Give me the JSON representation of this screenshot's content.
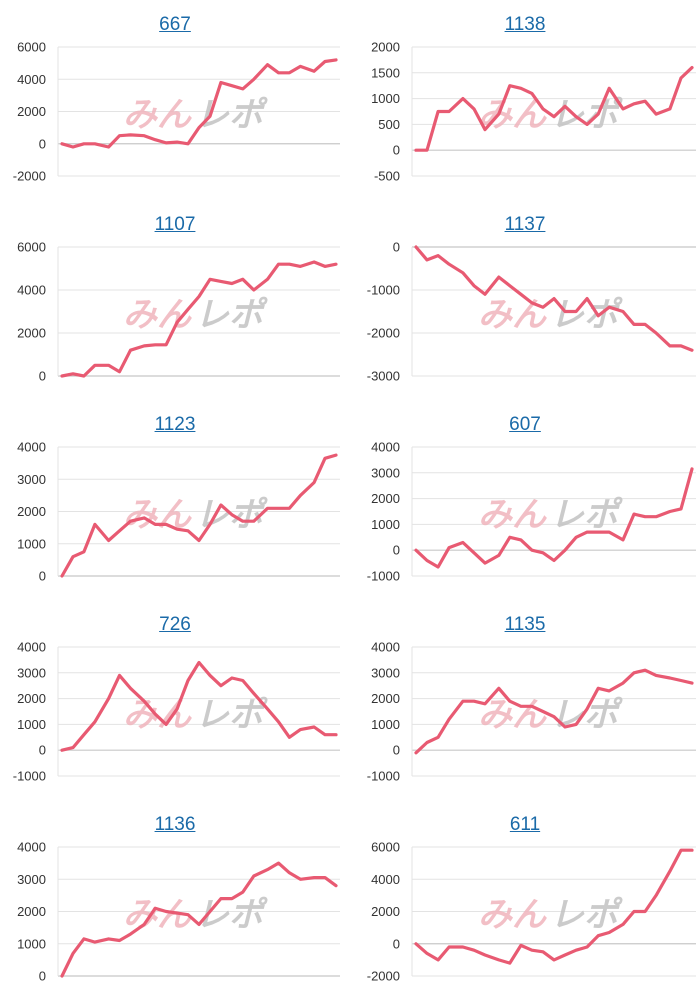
{
  "colors": {
    "line": "#e85a72",
    "title": "#1a6aa8",
    "watermark_a": "#f0b4bc",
    "watermark_b": "#c2c2c2"
  },
  "watermark": {
    "part_a": "みん",
    "part_b": "レポ"
  },
  "chart_data": [
    {
      "type": "line",
      "title": "667",
      "yticks": [
        6000,
        4000,
        2000,
        0,
        -2000
      ],
      "ylim": [
        -2000,
        6000
      ],
      "x": [
        0,
        4,
        8,
        12,
        17,
        21,
        25,
        30,
        34,
        38,
        42,
        46,
        50,
        54,
        58,
        62,
        66,
        70,
        75,
        79,
        83,
        87,
        92,
        96,
        100
      ],
      "values": [
        0,
        -200,
        0,
        0,
        -200,
        500,
        550,
        500,
        250,
        50,
        100,
        0,
        1000,
        1700,
        3800,
        3600,
        3400,
        4000,
        4900,
        4400,
        4400,
        4800,
        4500,
        5100,
        5200
      ]
    },
    {
      "type": "line",
      "title": "1138",
      "yticks": [
        2000,
        1500,
        1000,
        500,
        0,
        -500
      ],
      "ylim": [
        -500,
        2000
      ],
      "x": [
        0,
        4,
        8,
        12,
        17,
        21,
        25,
        30,
        34,
        38,
        42,
        46,
        50,
        54,
        58,
        62,
        66,
        70,
        75,
        79,
        83,
        87,
        92,
        96,
        100
      ],
      "values": [
        0,
        0,
        750,
        750,
        1000,
        800,
        400,
        700,
        1250,
        1200,
        1100,
        800,
        650,
        850,
        650,
        500,
        700,
        1200,
        800,
        900,
        950,
        700,
        800,
        1400,
        1600
      ]
    },
    {
      "type": "line",
      "title": "1107",
      "yticks": [
        6000,
        4000,
        2000,
        0
      ],
      "ylim": [
        0,
        6000
      ],
      "x": [
        0,
        4,
        8,
        12,
        17,
        21,
        25,
        30,
        34,
        38,
        42,
        46,
        50,
        54,
        58,
        62,
        66,
        70,
        75,
        79,
        83,
        87,
        92,
        96,
        100
      ],
      "values": [
        0,
        100,
        0,
        500,
        500,
        200,
        1200,
        1400,
        1450,
        1450,
        2500,
        3100,
        3700,
        4500,
        4400,
        4300,
        4500,
        4000,
        4500,
        5200,
        5200,
        5100,
        5300,
        5100,
        5200
      ]
    },
    {
      "type": "line",
      "title": "1137",
      "yticks": [
        0,
        -1000,
        -2000,
        -3000
      ],
      "ylim": [
        -3000,
        0
      ],
      "x": [
        0,
        4,
        8,
        12,
        17,
        21,
        25,
        30,
        34,
        38,
        42,
        46,
        50,
        54,
        58,
        62,
        66,
        70,
        75,
        79,
        83,
        87,
        92,
        96,
        100
      ],
      "values": [
        0,
        -300,
        -200,
        -400,
        -600,
        -900,
        -1100,
        -700,
        -900,
        -1100,
        -1300,
        -1400,
        -1200,
        -1500,
        -1500,
        -1200,
        -1600,
        -1400,
        -1500,
        -1800,
        -1800,
        -2000,
        -2300,
        -2300,
        -2400
      ]
    },
    {
      "type": "line",
      "title": "1123",
      "yticks": [
        4000,
        3000,
        2000,
        1000,
        0
      ],
      "ylim": [
        0,
        4000
      ],
      "x": [
        0,
        4,
        8,
        12,
        17,
        21,
        25,
        30,
        34,
        38,
        42,
        46,
        50,
        54,
        58,
        62,
        66,
        70,
        75,
        79,
        83,
        87,
        92,
        96,
        100
      ],
      "values": [
        0,
        600,
        750,
        1600,
        1100,
        1400,
        1700,
        1800,
        1600,
        1600,
        1450,
        1400,
        1100,
        1600,
        2200,
        1900,
        1700,
        1700,
        2100,
        2100,
        2100,
        2500,
        2900,
        3650,
        3750
      ]
    },
    {
      "type": "line",
      "title": "607",
      "yticks": [
        4000,
        3000,
        2000,
        1000,
        0,
        -1000
      ],
      "ylim": [
        -1000,
        4000
      ],
      "x": [
        0,
        4,
        8,
        12,
        17,
        21,
        25,
        30,
        34,
        38,
        42,
        46,
        50,
        54,
        58,
        62,
        66,
        70,
        75,
        79,
        83,
        87,
        92,
        96,
        100
      ],
      "values": [
        0,
        -400,
        -650,
        100,
        300,
        -100,
        -500,
        -200,
        500,
        400,
        0,
        -100,
        -400,
        0,
        500,
        700,
        700,
        700,
        400,
        1400,
        1300,
        1300,
        1500,
        1600,
        3150
      ]
    },
    {
      "type": "line",
      "title": "726",
      "yticks": [
        4000,
        3000,
        2000,
        1000,
        0,
        -1000
      ],
      "ylim": [
        -1000,
        4000
      ],
      "x": [
        0,
        4,
        8,
        12,
        17,
        21,
        25,
        30,
        34,
        38,
        42,
        46,
        50,
        54,
        58,
        62,
        66,
        70,
        75,
        79,
        83,
        87,
        92,
        96,
        100
      ],
      "values": [
        0,
        100,
        600,
        1100,
        2000,
        2900,
        2400,
        1900,
        1400,
        1000,
        1600,
        2700,
        3400,
        2900,
        2500,
        2800,
        2700,
        2200,
        1600,
        1100,
        500,
        800,
        900,
        600,
        600
      ]
    },
    {
      "type": "line",
      "title": "1135",
      "yticks": [
        4000,
        3000,
        2000,
        1000,
        0,
        -1000
      ],
      "ylim": [
        -1000,
        4000
      ],
      "x": [
        0,
        4,
        8,
        12,
        17,
        21,
        25,
        30,
        34,
        38,
        42,
        46,
        50,
        54,
        58,
        62,
        66,
        70,
        75,
        79,
        83,
        87,
        92,
        96,
        100
      ],
      "values": [
        -100,
        300,
        500,
        1200,
        1900,
        1900,
        1800,
        2400,
        1900,
        1700,
        1700,
        1500,
        1300,
        900,
        1000,
        1600,
        2400,
        2300,
        2600,
        3000,
        3100,
        2900,
        2800,
        2700,
        2600
      ]
    },
    {
      "type": "line",
      "title": "1136",
      "yticks": [
        4000,
        3000,
        2000,
        1000,
        0
      ],
      "ylim": [
        0,
        4000
      ],
      "x": [
        0,
        4,
        8,
        12,
        17,
        21,
        25,
        30,
        34,
        38,
        42,
        46,
        50,
        54,
        58,
        62,
        66,
        70,
        75,
        79,
        83,
        87,
        92,
        96,
        100
      ],
      "values": [
        0,
        700,
        1150,
        1050,
        1150,
        1100,
        1300,
        1600,
        2100,
        2000,
        1950,
        1900,
        1600,
        2000,
        2400,
        2400,
        2600,
        3100,
        3300,
        3500,
        3200,
        3000,
        3050,
        3050,
        2800
      ]
    },
    {
      "type": "line",
      "title": "611",
      "yticks": [
        6000,
        4000,
        2000,
        0,
        -2000
      ],
      "ylim": [
        -2000,
        6000
      ],
      "x": [
        0,
        4,
        8,
        12,
        17,
        21,
        25,
        30,
        34,
        38,
        42,
        46,
        50,
        54,
        58,
        62,
        66,
        70,
        75,
        79,
        83,
        87,
        92,
        96,
        100
      ],
      "values": [
        0,
        -600,
        -1000,
        -200,
        -200,
        -400,
        -700,
        -1000,
        -1200,
        -100,
        -400,
        -500,
        -1000,
        -700,
        -400,
        -200,
        500,
        700,
        1200,
        2000,
        2000,
        3000,
        4500,
        5800,
        5800
      ]
    }
  ]
}
